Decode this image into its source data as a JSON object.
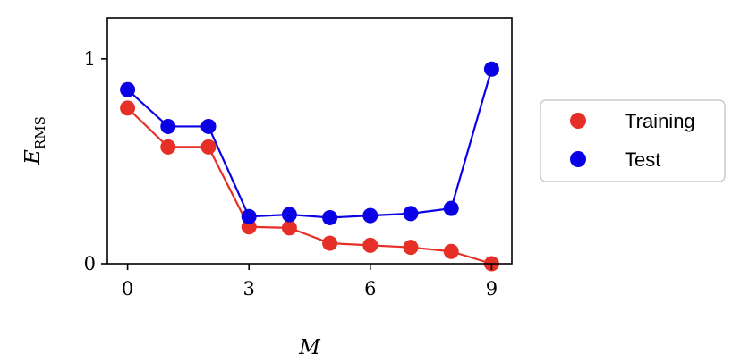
{
  "chart_data": {
    "type": "line",
    "title": "",
    "xlabel": "M",
    "ylabel": {
      "base": "E",
      "subscript": "RMS"
    },
    "xlim": [
      -0.5,
      9.5
    ],
    "ylim": [
      0,
      1.2
    ],
    "xticks": [
      0,
      3,
      6,
      9
    ],
    "xtick_labels": [
      "0",
      "3",
      "6",
      "9"
    ],
    "yticks": [
      0,
      1
    ],
    "ytick_labels": [
      "0",
      "1"
    ],
    "grid": false,
    "legend_position": "right",
    "x": [
      0,
      1,
      2,
      3,
      4,
      5,
      6,
      7,
      8,
      9
    ],
    "series": [
      {
        "name": "Training",
        "color": "#e63027",
        "values": [
          0.76,
          0.57,
          0.57,
          0.18,
          0.175,
          0.1,
          0.09,
          0.08,
          0.06,
          0.0
        ]
      },
      {
        "name": "Test",
        "color": "#0a00e6",
        "values": [
          0.85,
          0.67,
          0.67,
          0.23,
          0.24,
          0.225,
          0.235,
          0.245,
          0.27,
          0.95
        ]
      }
    ]
  }
}
